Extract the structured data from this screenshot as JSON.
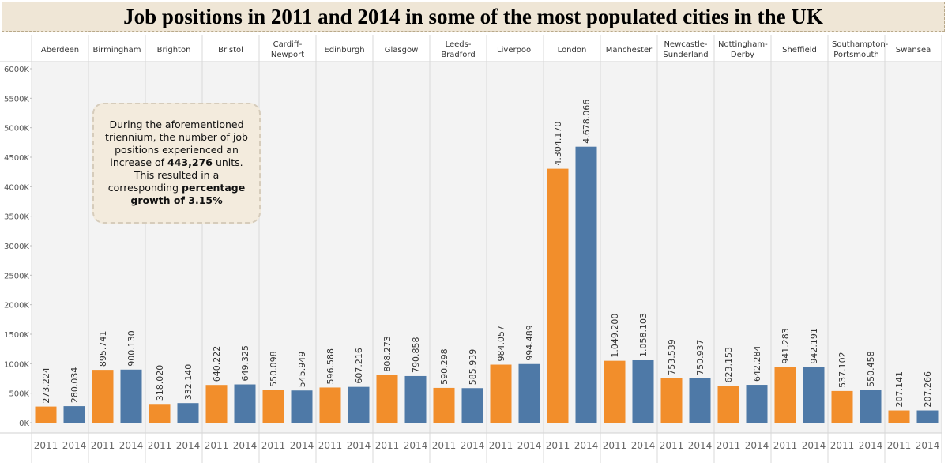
{
  "chart_data": {
    "type": "bar",
    "title": "Job positions in 2011 and 2014 in some of the most populated cities in the UK",
    "annotation": [
      "During the aforementioned triennium, the number of job positions experienced an increase of ",
      "443,276",
      " units. This resulted in a corresponding ",
      "percentage growth of 3.15%"
    ],
    "categories": [
      "Aberdeen",
      "Birmingham",
      "Brighton",
      "Bristol",
      "Cardiff-Newport",
      "Edinburgh",
      "Glasgow",
      "Leeds-Bradford",
      "Liverpool",
      "London",
      "Manchester",
      "Newcastle-Sunderland",
      "Nottingham-Derby",
      "Sheffield",
      "Southampton-Portsmouth",
      "Swansea"
    ],
    "series": [
      {
        "name": "2011",
        "color": "#f28e2b",
        "values": [
          273224,
          895741,
          318020,
          640222,
          550098,
          596588,
          808273,
          590298,
          984057,
          4304170,
          1049200,
          753539,
          623153,
          941283,
          537102,
          207141
        ],
        "value_labels": [
          "273.224",
          "895.741",
          "318.020",
          "640.222",
          "550.098",
          "596.588",
          "808.273",
          "590.298",
          "984.057",
          "4.304.170",
          "1.049.200",
          "753.539",
          "623.153",
          "941.283",
          "537.102",
          "207.141"
        ]
      },
      {
        "name": "2014",
        "color": "#4e79a7",
        "values": [
          280034,
          900130,
          332140,
          649325,
          545949,
          607216,
          790858,
          585939,
          994489,
          4678066,
          1058103,
          750937,
          642284,
          942191,
          550458,
          207266
        ],
        "value_labels": [
          "280.034",
          "900.130",
          "332.140",
          "649.325",
          "545.949",
          "607.216",
          "790.858",
          "585.939",
          "994.489",
          "4.678.066",
          "1.058.103",
          "750.937",
          "642.284",
          "942.191",
          "550.458",
          "207.266"
        ]
      }
    ],
    "ylim": [
      0,
      6000000
    ],
    "yticks": [
      {
        "value": 0,
        "label": "0K"
      },
      {
        "value": 500000,
        "label": "500K"
      },
      {
        "value": 1000000,
        "label": "1000K"
      },
      {
        "value": 1500000,
        "label": "1500K"
      },
      {
        "value": 2000000,
        "label": "2000K"
      },
      {
        "value": 2500000,
        "label": "2500K"
      },
      {
        "value": 3000000,
        "label": "3000K"
      },
      {
        "value": 3500000,
        "label": "3500K"
      },
      {
        "value": 4000000,
        "label": "4000K"
      },
      {
        "value": 4500000,
        "label": "4500K"
      },
      {
        "value": 5000000,
        "label": "5000K"
      },
      {
        "value": 5500000,
        "label": "5500K"
      },
      {
        "value": 6000000,
        "label": "6000K"
      }
    ],
    "grid": false
  }
}
